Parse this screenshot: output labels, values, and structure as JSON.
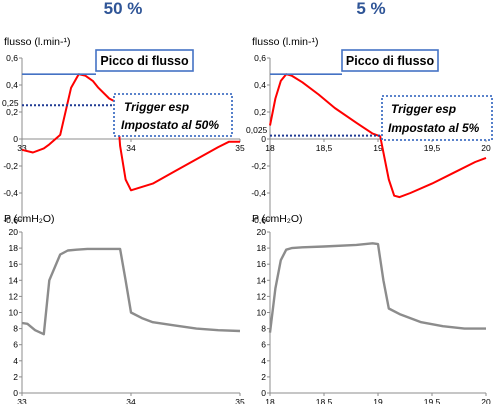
{
  "panels": [
    {
      "heading": "50 %",
      "peak_label": "Picco di flusso",
      "trigger_lines": [
        "Trigger esp",
        "Impostato al 50%"
      ],
      "trigger_value_label": "0,25"
    },
    {
      "heading": "5 %",
      "peak_label": "Picco di flusso",
      "trigger_lines": [
        "Trigger esp",
        "Impostato al 5%"
      ],
      "trigger_value_label": "0,025"
    }
  ],
  "colors": {
    "heading": "#2f5597",
    "flow": "#ff0000",
    "pressure": "#8c8c8c",
    "peak_line": "#4472c4",
    "box_border": "#4472c4",
    "trigger_dots": "#1f3a93"
  },
  "chart_data": [
    {
      "type": "line",
      "ylabel": "flusso (l.min-¹)",
      "xlim": [
        33,
        35
      ],
      "ylim": [
        -0.6,
        0.6
      ],
      "x_ticks": [
        "33",
        "34",
        "35"
      ],
      "y_ticks": [
        "0,6",
        "0,4",
        "0,2",
        "0",
        "-0,2",
        "-0,4",
        "-0,6"
      ],
      "peak_value": 0.48,
      "trigger_value": 0.25,
      "series": [
        {
          "x": [
            33,
            33.1,
            33.2,
            33.25,
            33.35,
            33.45,
            33.52,
            33.58,
            33.65,
            33.7,
            33.8,
            33.87,
            33.9,
            33.95,
            34,
            34.2,
            34.4,
            34.6,
            34.8,
            34.9,
            35
          ],
          "y": [
            -0.08,
            -0.1,
            -0.07,
            -0.04,
            0.03,
            0.38,
            0.48,
            0.47,
            0.43,
            0.38,
            0.3,
            0.27,
            -0.05,
            -0.3,
            -0.38,
            -0.33,
            -0.24,
            -0.15,
            -0.06,
            -0.02,
            -0.02
          ]
        }
      ]
    },
    {
      "type": "line",
      "ylabel": "P (cmH₂O)",
      "xlim": [
        33,
        35
      ],
      "ylim": [
        0,
        20
      ],
      "x_ticks": [
        "33",
        "34",
        "35"
      ],
      "y_ticks": [
        "20",
        "18",
        "16",
        "14",
        "12",
        "10",
        "8",
        "6",
        "4",
        "2",
        "0"
      ],
      "series": [
        {
          "x": [
            33,
            33.05,
            33.12,
            33.2,
            33.25,
            33.35,
            33.42,
            33.5,
            33.6,
            33.9,
            33.95,
            34,
            34.1,
            34.2,
            34.4,
            34.6,
            34.8,
            35
          ],
          "y": [
            8.7,
            8.6,
            7.8,
            7.3,
            14,
            17.2,
            17.7,
            17.8,
            17.9,
            17.9,
            14,
            10,
            9.3,
            8.8,
            8.4,
            8,
            7.8,
            7.7
          ]
        }
      ]
    },
    {
      "type": "line",
      "ylabel": "flusso (l.min-¹)",
      "xlim": [
        18,
        20
      ],
      "ylim": [
        -0.6,
        0.6
      ],
      "x_ticks": [
        "18",
        "18,5",
        "19",
        "19,5",
        "20"
      ],
      "y_ticks": [
        "0,6",
        "0,4",
        "0,2",
        "0",
        "-0,2",
        "-0,4",
        "-0,6"
      ],
      "peak_value": 0.48,
      "trigger_value": 0.025,
      "series": [
        {
          "x": [
            18,
            18.05,
            18.1,
            18.15,
            18.2,
            18.3,
            18.45,
            18.6,
            18.8,
            18.95,
            19.02,
            19.1,
            19.15,
            19.2,
            19.3,
            19.5,
            19.7,
            19.9,
            20
          ],
          "y": [
            0.1,
            0.3,
            0.43,
            0.48,
            0.47,
            0.42,
            0.33,
            0.23,
            0.12,
            0.04,
            0.02,
            -0.3,
            -0.42,
            -0.43,
            -0.4,
            -0.33,
            -0.25,
            -0.17,
            -0.14
          ]
        }
      ]
    },
    {
      "type": "line",
      "ylabel": "P (cmH₂O)",
      "xlim": [
        18,
        20
      ],
      "ylim": [
        0,
        20
      ],
      "x_ticks": [
        "18",
        "18,5",
        "19",
        "19,5",
        "20"
      ],
      "y_ticks": [
        "20",
        "18",
        "16",
        "14",
        "12",
        "10",
        "8",
        "6",
        "4",
        "2",
        "0"
      ],
      "series": [
        {
          "x": [
            18,
            18.05,
            18.1,
            18.15,
            18.2,
            18.3,
            18.5,
            18.8,
            18.95,
            19,
            19.05,
            19.1,
            19.2,
            19.4,
            19.6,
            19.8,
            20
          ],
          "y": [
            7.5,
            13,
            16.5,
            17.8,
            18,
            18.1,
            18.2,
            18.4,
            18.6,
            18.5,
            14,
            10.5,
            9.8,
            8.8,
            8.3,
            8,
            8
          ]
        }
      ]
    }
  ]
}
